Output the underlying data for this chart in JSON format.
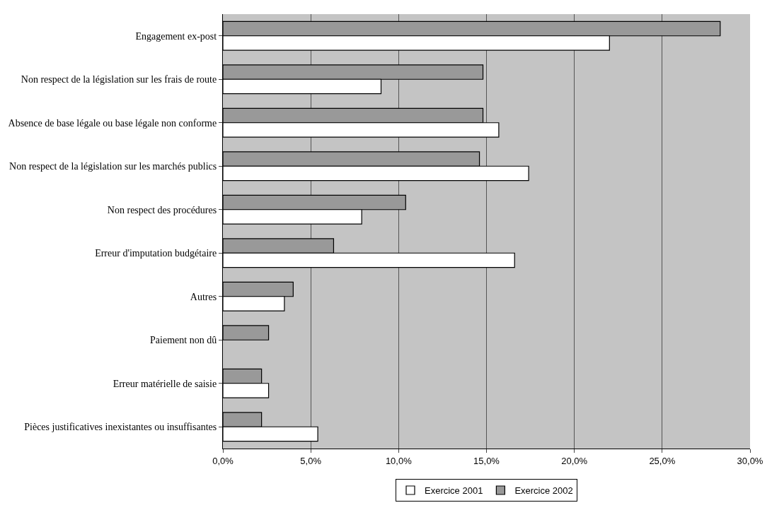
{
  "chart_data": {
    "type": "bar",
    "orientation": "horizontal",
    "categories": [
      "Engagement ex-post",
      "Non respect de la législation sur les frais de route",
      "Absence de base légale ou base légale non conforme",
      "Non respect de la législation sur les marchés publics",
      "Non respect des procédures",
      "Erreur d'imputation budgétaire",
      "Autres",
      "Paiement non dû",
      "Erreur matérielle de saisie",
      "Pièces justificatives inexistantes ou insuffisantes"
    ],
    "series": [
      {
        "name": "Exercice 2001",
        "color": "#ffffff",
        "values": [
          22.0,
          9.0,
          15.7,
          17.4,
          7.9,
          16.6,
          3.5,
          null,
          2.6,
          5.4
        ]
      },
      {
        "name": "Exercice 2002",
        "color": "#999999",
        "values": [
          28.3,
          14.8,
          14.8,
          14.6,
          10.4,
          6.3,
          4.0,
          2.6,
          2.2,
          2.2
        ]
      }
    ],
    "xlim": [
      0,
      30
    ],
    "xticks": [
      {
        "value": 0,
        "label": "0,0%"
      },
      {
        "value": 5,
        "label": "5,0%"
      },
      {
        "value": 10,
        "label": "10,0%"
      },
      {
        "value": 15,
        "label": "15,0%"
      },
      {
        "value": 20,
        "label": "20,0%"
      },
      {
        "value": 25,
        "label": "25,0%"
      },
      {
        "value": 30,
        "label": "30,0%"
      }
    ],
    "grid": "x",
    "legend": "bottom"
  }
}
